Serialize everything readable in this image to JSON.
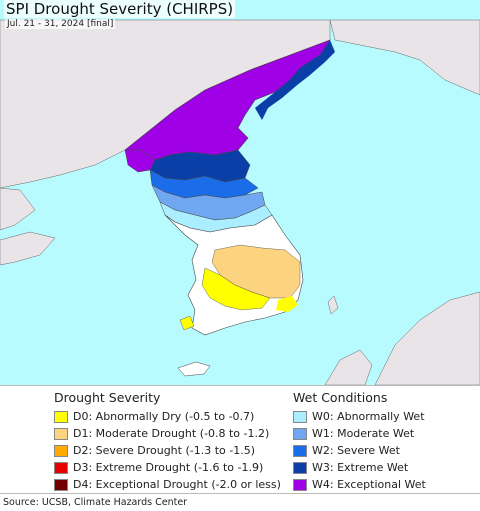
{
  "map": {
    "title": "SPI Drought Severity (CHIRPS)",
    "subtitle": "Jul. 21 - 31, 2024 [final]"
  },
  "legend": {
    "drought": {
      "heading": "Drought Severity",
      "items": [
        {
          "label": "D0: Abnormally Dry (-0.5 to -0.7)",
          "color": "#ffff00"
        },
        {
          "label": "D1: Moderate Drought (-0.8 to -1.2)",
          "color": "#fcd37f"
        },
        {
          "label": "D2: Severe Drought (-1.3 to -1.5)",
          "color": "#ffaa00"
        },
        {
          "label": "D3: Extreme Drought (-1.6 to -1.9)",
          "color": "#e60000"
        },
        {
          "label": "D4: Exceptional Drought (-2.0 or less)",
          "color": "#730000"
        }
      ]
    },
    "wet": {
      "heading": "Wet Conditions",
      "items": [
        {
          "label": "W0: Abnormally Wet",
          "color": "#aaeeff"
        },
        {
          "label": "W1: Moderate Wet",
          "color": "#6fa8f0"
        },
        {
          "label": "W2: Severe Wet",
          "color": "#1a6ce8"
        },
        {
          "label": "W3: Extreme Wet",
          "color": "#0a3fa8"
        },
        {
          "label": "W4: Exceptional Wet",
          "color": "#a000e6"
        }
      ]
    }
  },
  "footer": {
    "source": "Source: UCSB, Climate Hazards Center"
  },
  "colors": {
    "sea": "#b7fbff",
    "land_outside": "#e8e4e8",
    "normal": "#ffffff"
  }
}
